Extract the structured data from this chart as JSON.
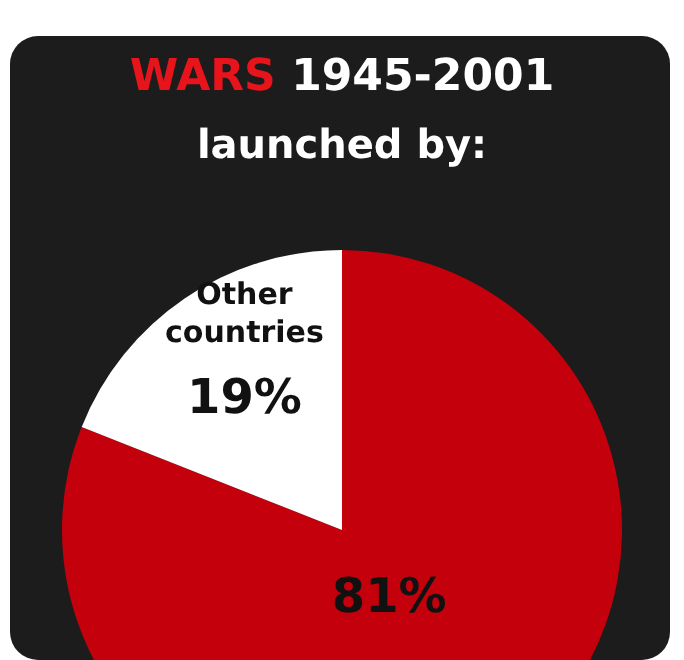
{
  "chart_data": {
    "type": "pie",
    "title": "WARS 1945-2001",
    "subtitle": "launched by:",
    "categories": [
      null,
      "Other countries"
    ],
    "values": [
      81,
      19
    ],
    "colors": [
      "#c4000c",
      "#ffffff"
    ],
    "value_labels": [
      "81%",
      "19%"
    ],
    "legend": false
  }
}
